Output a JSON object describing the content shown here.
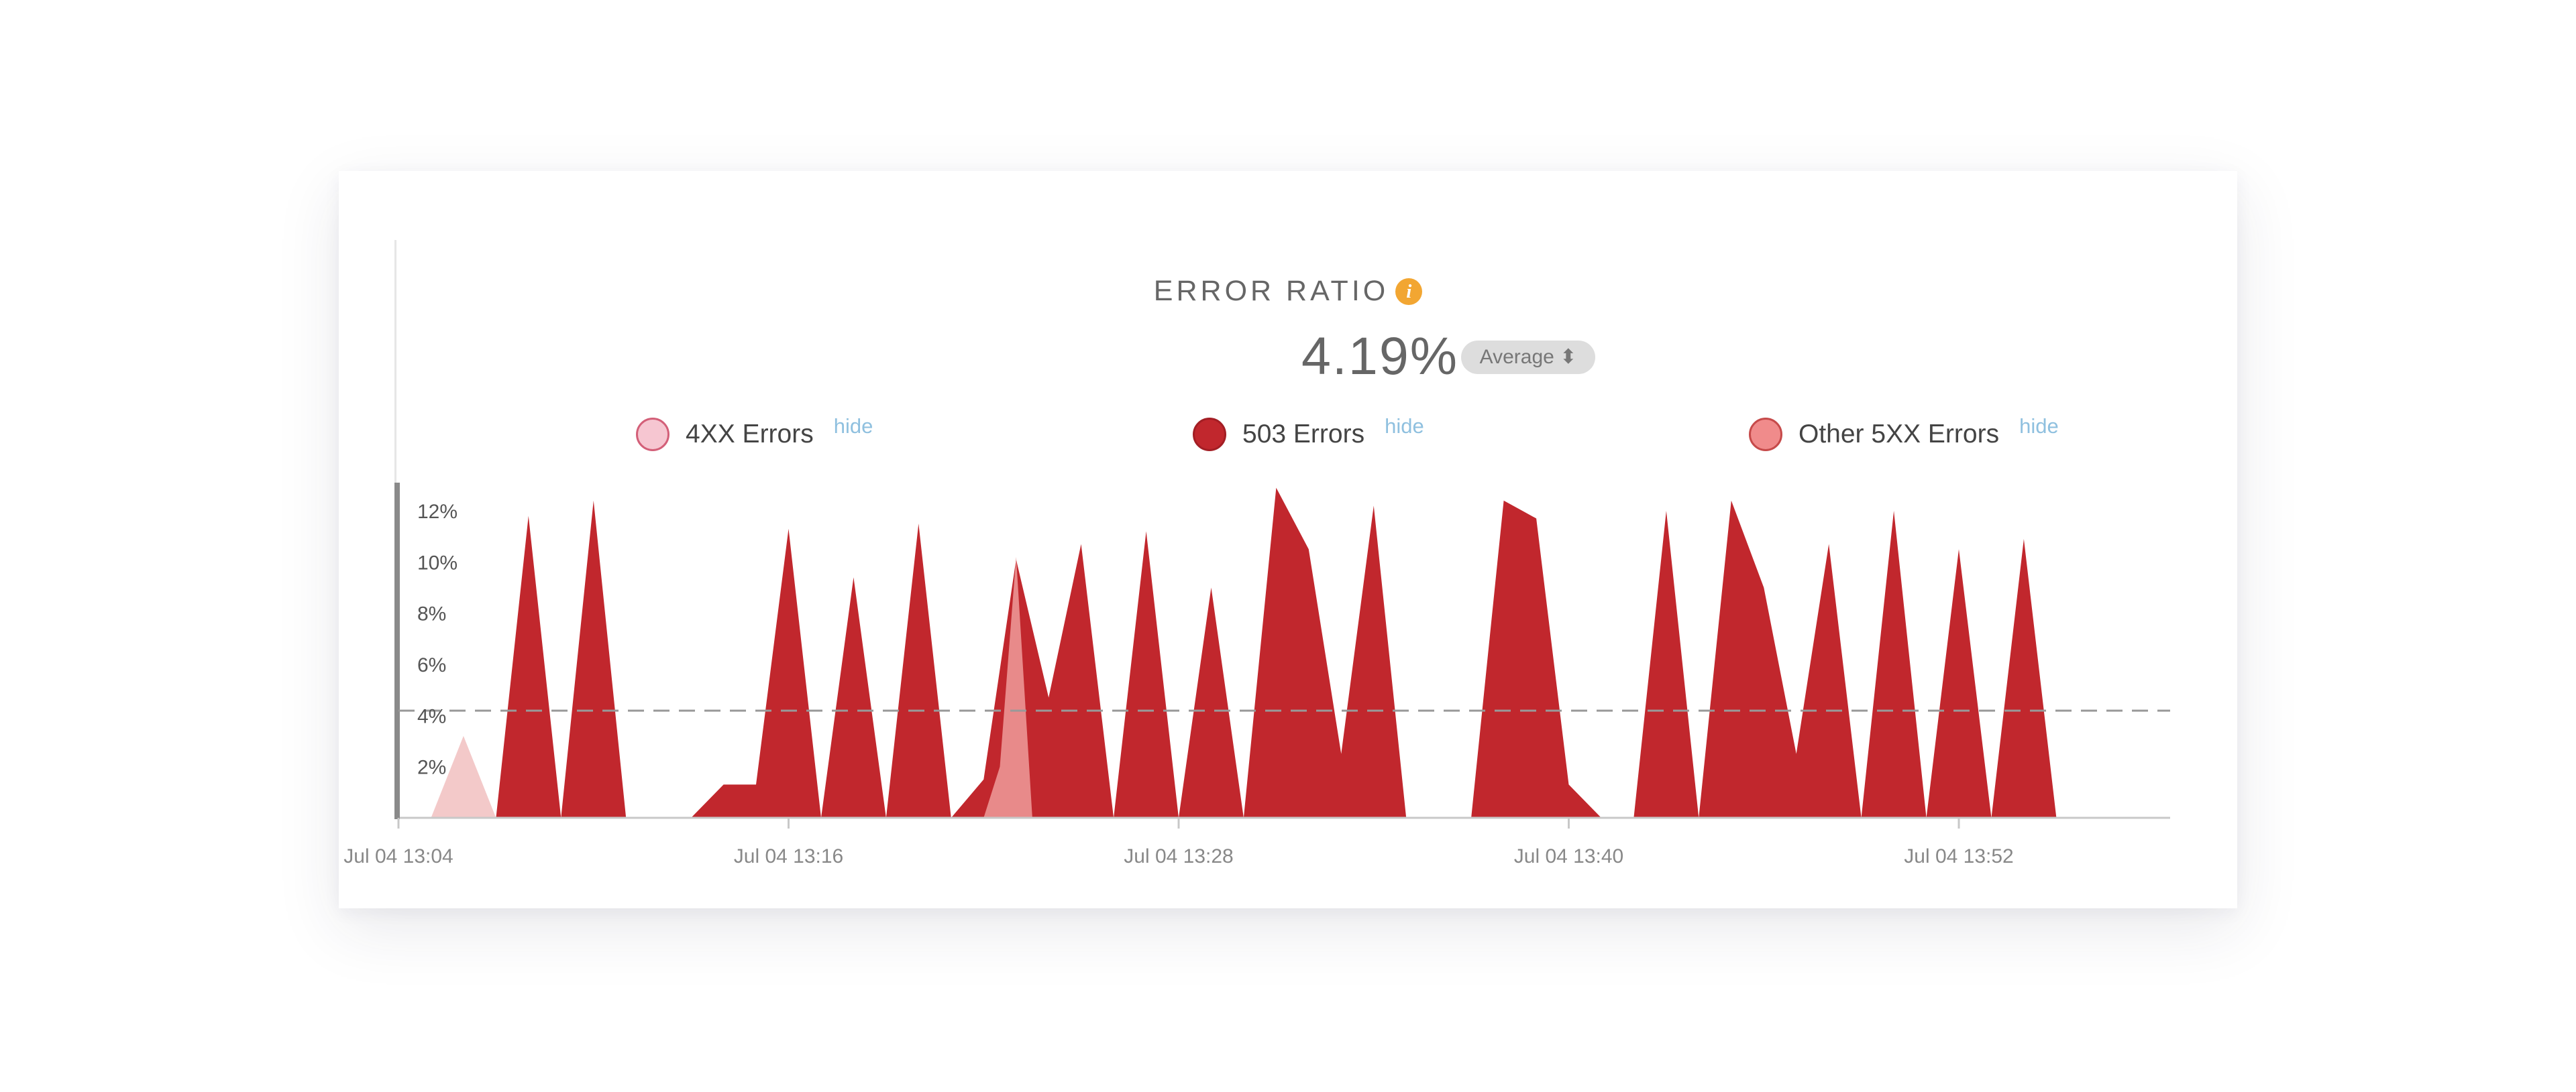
{
  "header": {
    "title": "ERROR RATIO",
    "info_icon": "info-icon",
    "value": "4.19%",
    "aggregation": "Average ⬍"
  },
  "legend": [
    {
      "label": "4XX Errors",
      "action": "hide",
      "fill": "#f6c6d1",
      "stroke": "#d35f78"
    },
    {
      "label": "503 Errors",
      "action": "hide",
      "fill": "#c1272d",
      "stroke": "#a31e24"
    },
    {
      "label": "Other 5XX Errors",
      "action": "hide",
      "fill": "#f08b8b",
      "stroke": "#c64a4a"
    }
  ],
  "chart_data": {
    "type": "area",
    "x_tick_labels": [
      "Jul 04 13:04",
      "Jul 04 13:16",
      "Jul 04 13:28",
      "Jul 04 13:40",
      "Jul 04 13:52"
    ],
    "x_tick_minutes": [
      4,
      16,
      28,
      40,
      52
    ],
    "x_range_minutes": [
      4,
      58.5
    ],
    "y_tick_labels": [
      "2%",
      "4%",
      "6%",
      "8%",
      "10%",
      "12%"
    ],
    "y_ticks": [
      2,
      4,
      6,
      8,
      10,
      12
    ],
    "ylim": [
      0,
      13.1
    ],
    "average_line": 4.19,
    "grid": false,
    "colors": {
      "4xx": "#f3c9c9",
      "503": "#c1272d",
      "other_5xx": "#e88a8a",
      "average": "#999999",
      "axis": "#c8c8c8"
    },
    "series": [
      {
        "name": "4XX Errors",
        "points": [
          [
            5,
            0
          ],
          [
            6,
            3.2
          ],
          [
            7,
            0
          ]
        ]
      },
      {
        "name": "503 Errors",
        "points": [
          [
            7,
            0
          ],
          [
            8,
            11.8
          ],
          [
            9,
            0
          ],
          [
            10,
            12.4
          ],
          [
            11,
            0
          ],
          [
            12,
            0
          ],
          [
            13,
            0
          ],
          [
            14,
            1.3
          ],
          [
            15,
            1.3
          ],
          [
            16,
            11.3
          ],
          [
            17,
            0
          ],
          [
            18,
            9.4
          ],
          [
            19,
            0
          ],
          [
            20,
            11.5
          ],
          [
            21,
            0
          ],
          [
            22,
            1.5
          ],
          [
            23,
            10.1
          ],
          [
            24,
            4.7
          ],
          [
            25,
            10.7
          ],
          [
            26,
            0
          ],
          [
            27,
            11.2
          ],
          [
            28,
            0
          ],
          [
            29,
            9
          ],
          [
            30,
            0
          ],
          [
            31,
            12.9
          ],
          [
            32,
            10.5
          ],
          [
            33,
            2.5
          ],
          [
            34,
            12.2
          ],
          [
            35,
            0
          ],
          [
            36,
            0
          ],
          [
            37,
            0
          ],
          [
            38,
            12.4
          ],
          [
            39,
            11.7
          ],
          [
            40,
            1.3
          ],
          [
            41,
            0
          ],
          [
            42,
            0
          ],
          [
            43,
            12
          ],
          [
            44,
            0
          ],
          [
            45,
            12.4
          ],
          [
            46,
            9
          ],
          [
            47,
            2.5
          ],
          [
            48,
            10.7
          ],
          [
            49,
            0
          ],
          [
            50,
            12
          ],
          [
            51,
            0
          ],
          [
            52,
            10.5
          ],
          [
            53,
            0
          ],
          [
            54,
            10.9
          ],
          [
            55,
            0
          ],
          [
            58.5,
            0
          ]
        ]
      },
      {
        "name": "Other 5XX Errors",
        "points": [
          [
            22,
            0
          ],
          [
            22.5,
            2
          ],
          [
            23,
            10.2
          ],
          [
            23.5,
            0
          ]
        ]
      }
    ]
  }
}
